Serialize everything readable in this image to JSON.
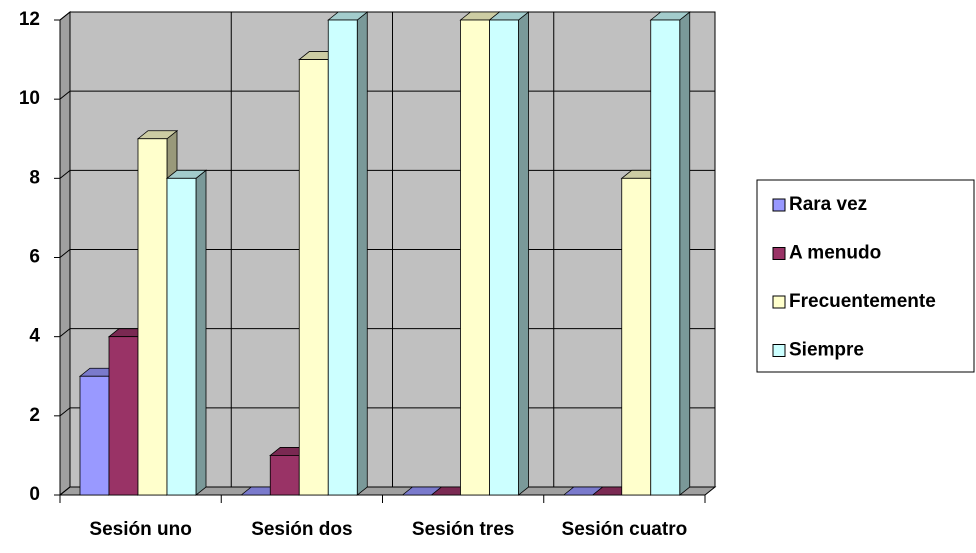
{
  "chart_data": {
    "type": "bar3d",
    "categories": [
      "Sesión uno",
      "Sesión dos",
      "Sesión tres",
      "Sesión cuatro"
    ],
    "series": [
      {
        "name": "Rara vez",
        "color": "#9999ff",
        "values": [
          3,
          0,
          0,
          0
        ]
      },
      {
        "name": "A menudo",
        "color": "#993366",
        "values": [
          4,
          1,
          0,
          0
        ]
      },
      {
        "name": "Frecuentemente",
        "color": "#ffffcc",
        "values": [
          9,
          11,
          12,
          8
        ]
      },
      {
        "name": "Siempre",
        "color": "#ccffff",
        "values": [
          8,
          12,
          12,
          12
        ]
      }
    ],
    "ylim": [
      0,
      12
    ],
    "yticks": [
      0,
      2,
      4,
      6,
      8,
      10,
      12
    ],
    "grid": true,
    "legend": "right"
  }
}
